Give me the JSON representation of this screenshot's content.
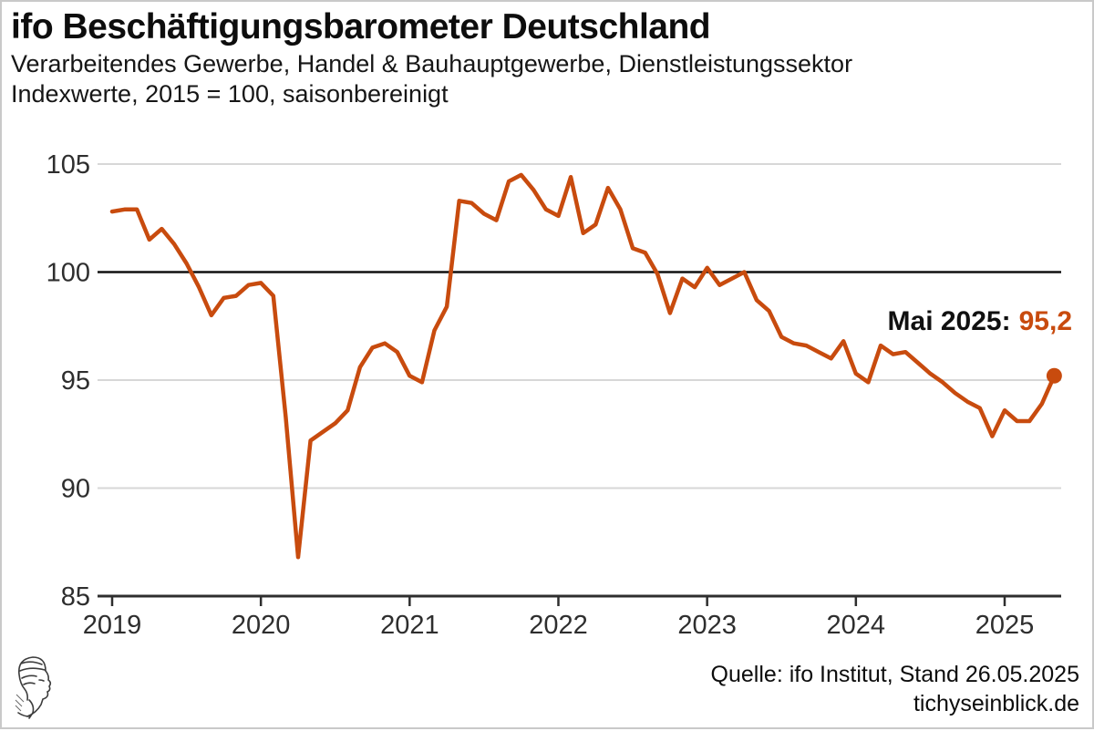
{
  "header": {
    "title": "ifo Beschäftigungsbarometer Deutschland",
    "subtitle_line1": "Verarbeitendes Gewerbe, Handel & Bauhauptgewerbe, Dienstleistungssektor",
    "subtitle_line2": "Indexwerte, 2015 = 100, saisonbereinigt"
  },
  "annotation": {
    "label": "Mai 2025:",
    "value": "95,2"
  },
  "footer": {
    "source_line1": "Quelle: ifo Institut, Stand 26.05.2025",
    "source_line2": "tichyseinblick.de",
    "logo": "tichys-einblick-woodcut-head"
  },
  "colors": {
    "line": "#c84b0e",
    "grid": "#d7d7d7",
    "baseline_100": "#111111",
    "axis": "#2e2e2e",
    "tick_text": "#2e2e2e",
    "text": "#111111"
  },
  "chart_data": {
    "type": "line",
    "title": "ifo Beschäftigungsbarometer Deutschland",
    "subtitle": "Verarbeitendes Gewerbe, Handel & Bauhauptgewerbe, Dienstleistungssektor — Indexwerte, 2015 = 100, saisonbereinigt",
    "frequency": "monthly",
    "x_start": "2019-01",
    "x_end": "2025-05",
    "x_tick_labels": [
      "2019",
      "2020",
      "2021",
      "2022",
      "2023",
      "2024",
      "2025"
    ],
    "y_ticks": [
      85,
      90,
      95,
      100,
      105
    ],
    "ylim": [
      85,
      105.5
    ],
    "grid": "horizontal-only",
    "reference_line": 100,
    "legend": "none",
    "series": [
      {
        "name": "ifo Beschäftigungsbarometer",
        "values": [
          102.8,
          102.9,
          102.9,
          101.5,
          102.0,
          101.3,
          100.4,
          99.3,
          98.0,
          98.8,
          98.9,
          99.4,
          99.5,
          98.9,
          93.3,
          86.8,
          92.2,
          92.6,
          93.0,
          93.6,
          95.6,
          96.5,
          96.7,
          96.3,
          95.2,
          94.9,
          97.3,
          98.4,
          103.3,
          103.2,
          102.7,
          102.4,
          104.2,
          104.5,
          103.8,
          102.9,
          102.6,
          104.4,
          101.8,
          102.2,
          103.9,
          102.9,
          101.1,
          100.9,
          99.9,
          98.1,
          99.7,
          99.3,
          100.2,
          99.4,
          99.7,
          100.0,
          98.7,
          98.2,
          97.0,
          96.7,
          96.6,
          96.3,
          96.0,
          96.8,
          95.3,
          94.9,
          96.6,
          96.2,
          96.3,
          95.8,
          95.3,
          94.9,
          94.4,
          94.0,
          93.7,
          92.4,
          93.6,
          93.1,
          93.1,
          93.9,
          95.2
        ]
      }
    ],
    "latest_point": {
      "label": "Mai 2025",
      "value": 95.2
    }
  }
}
